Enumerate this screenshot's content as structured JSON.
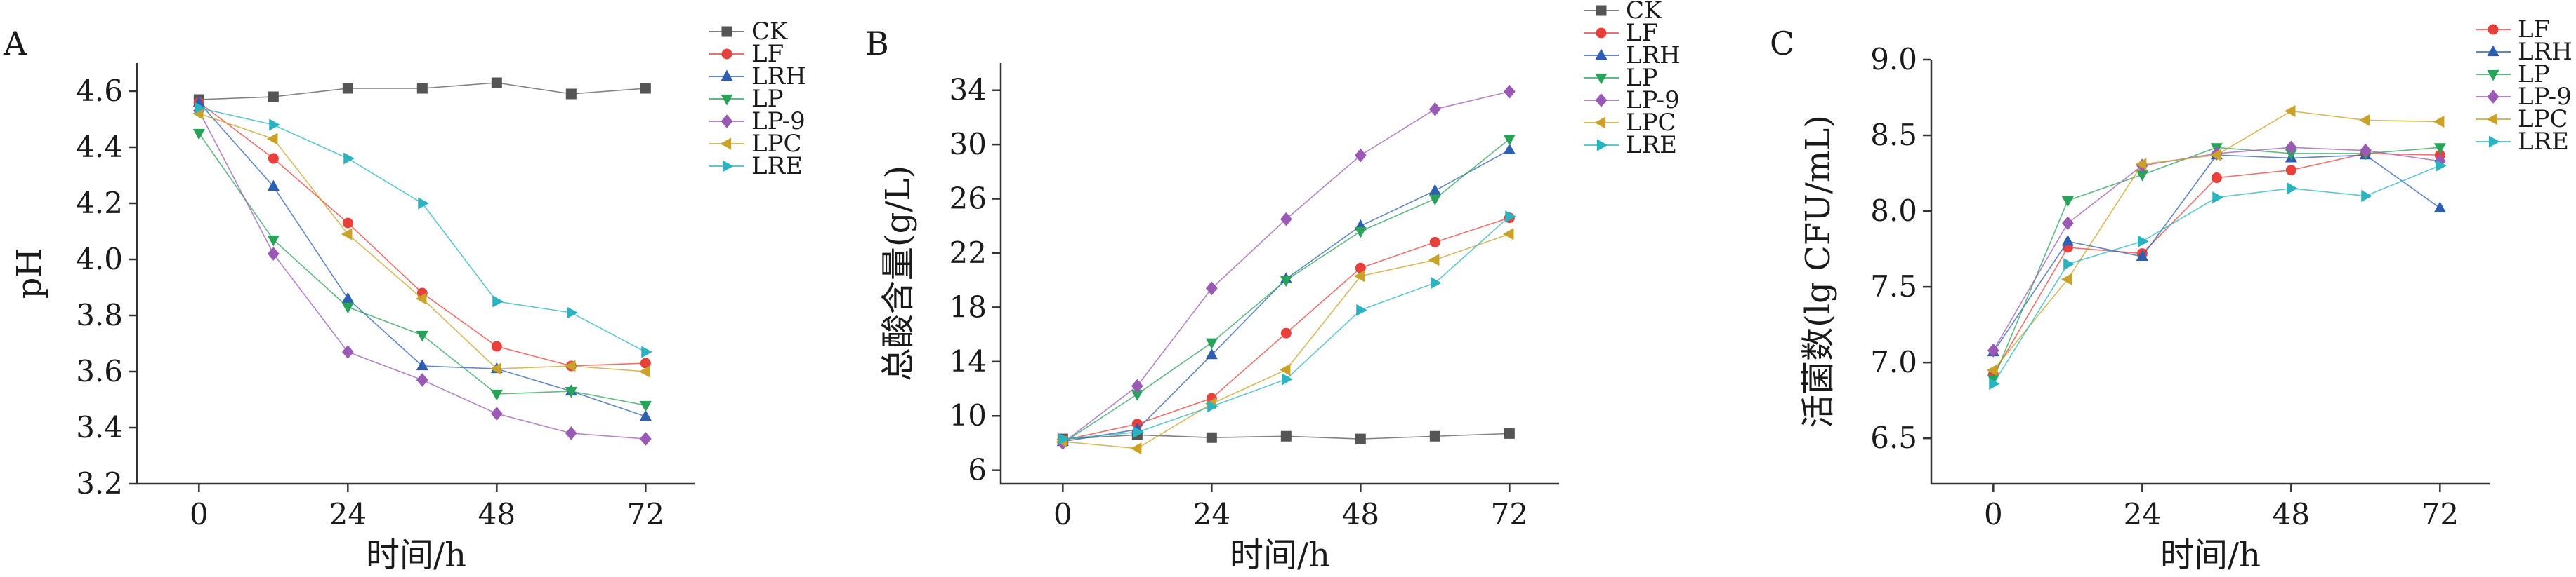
{
  "chart_data": [
    {
      "type": "line",
      "panel_label": "A",
      "ylabel": "pH",
      "xlabel": "时间/h",
      "x": [
        0,
        12,
        24,
        36,
        48,
        60,
        72
      ],
      "xticks": [
        "0",
        "24",
        "48",
        "72"
      ],
      "xlim": [
        -10,
        80
      ],
      "ylim": [
        3.2,
        4.7
      ],
      "yticks": [
        "3.2",
        "3.4",
        "3.6",
        "3.8",
        "4.0",
        "4.2",
        "4.4",
        "4.6"
      ],
      "legend_position": "top-right",
      "series": [
        {
          "name": "CK",
          "color": "#555555",
          "marker": "square",
          "values": [
            4.57,
            4.58,
            4.61,
            4.61,
            4.63,
            4.59,
            4.61
          ]
        },
        {
          "name": "LF",
          "color": "#e8413c",
          "marker": "circle",
          "values": [
            4.56,
            4.36,
            4.13,
            3.88,
            3.69,
            3.62,
            3.63
          ]
        },
        {
          "name": "LRH",
          "color": "#2c5fb0",
          "marker": "triangle-up",
          "values": [
            4.56,
            4.26,
            3.86,
            3.62,
            3.61,
            3.53,
            3.44
          ]
        },
        {
          "name": "LP",
          "color": "#2aa35a",
          "marker": "triangle-down",
          "values": [
            4.45,
            4.07,
            3.83,
            3.73,
            3.52,
            3.53,
            3.48
          ]
        },
        {
          "name": "LP-9",
          "color": "#9b59b6",
          "marker": "diamond",
          "values": [
            4.53,
            4.02,
            3.67,
            3.57,
            3.45,
            3.38,
            3.36
          ]
        },
        {
          "name": "LPC",
          "color": "#c9a227",
          "marker": "triangle-left",
          "values": [
            4.52,
            4.43,
            4.09,
            3.86,
            3.61,
            3.62,
            3.6
          ]
        },
        {
          "name": "LRE",
          "color": "#2bb3c0",
          "marker": "triangle-right",
          "values": [
            4.54,
            4.48,
            4.36,
            4.2,
            3.85,
            3.81,
            3.67
          ]
        }
      ]
    },
    {
      "type": "line",
      "panel_label": "B",
      "ylabel": "总酸含量(g/L)",
      "xlabel": "时间/h",
      "x": [
        0,
        12,
        24,
        36,
        48,
        60,
        72
      ],
      "xticks": [
        "0",
        "24",
        "48",
        "72"
      ],
      "xlim": [
        -10,
        80
      ],
      "ylim": [
        5,
        36
      ],
      "yticks": [
        "6",
        "10",
        "14",
        "18",
        "22",
        "26",
        "30",
        "34"
      ],
      "legend_position": "top-right",
      "series": [
        {
          "name": "CK",
          "color": "#555555",
          "marker": "square",
          "values": [
            8.3,
            8.6,
            8.4,
            8.5,
            8.3,
            8.5,
            8.7
          ]
        },
        {
          "name": "LF",
          "color": "#e8413c",
          "marker": "circle",
          "values": [
            8.2,
            9.4,
            11.3,
            16.1,
            20.9,
            22.8,
            24.6
          ]
        },
        {
          "name": "LRH",
          "color": "#2c5fb0",
          "marker": "triangle-up",
          "values": [
            8.1,
            9.0,
            14.5,
            20.1,
            24.0,
            26.6,
            29.6
          ]
        },
        {
          "name": "LP",
          "color": "#2aa35a",
          "marker": "triangle-down",
          "values": [
            8.0,
            11.6,
            15.4,
            20.0,
            23.6,
            26.0,
            30.4
          ]
        },
        {
          "name": "LP-9",
          "color": "#9b59b6",
          "marker": "diamond",
          "values": [
            8.0,
            12.2,
            19.4,
            24.5,
            29.2,
            32.6,
            33.9
          ]
        },
        {
          "name": "LPC",
          "color": "#c9a227",
          "marker": "triangle-left",
          "values": [
            8.1,
            7.6,
            10.9,
            13.4,
            20.3,
            21.5,
            23.4
          ]
        },
        {
          "name": "LRE",
          "color": "#2bb3c0",
          "marker": "triangle-right",
          "values": [
            8.3,
            8.8,
            10.7,
            12.7,
            17.8,
            19.8,
            24.7
          ]
        }
      ]
    },
    {
      "type": "line",
      "panel_label": "C",
      "ylabel": "活菌数(lg CFU/mL)",
      "xlabel": "时间/h",
      "x": [
        0,
        12,
        24,
        36,
        48,
        60,
        72
      ],
      "xticks": [
        "0",
        "24",
        "48",
        "72"
      ],
      "xlim": [
        -10,
        80
      ],
      "ylim": [
        6.2,
        9.0
      ],
      "yticks": [
        "6.5",
        "7.0",
        "7.5",
        "8.0",
        "8.5",
        "9.0"
      ],
      "legend_position": "top-right",
      "series": [
        {
          "name": "LF",
          "color": "#e8413c",
          "marker": "circle",
          "values": [
            6.92,
            7.76,
            7.72,
            8.22,
            8.27,
            8.38,
            8.37
          ]
        },
        {
          "name": "LRH",
          "color": "#2c5fb0",
          "marker": "triangle-up",
          "values": [
            7.07,
            7.8,
            7.7,
            8.37,
            8.35,
            8.37,
            8.02
          ]
        },
        {
          "name": "LP",
          "color": "#2aa35a",
          "marker": "triangle-down",
          "values": [
            6.89,
            8.07,
            8.24,
            8.42,
            8.38,
            8.38,
            8.42
          ]
        },
        {
          "name": "LP-9",
          "color": "#9b59b6",
          "marker": "diamond",
          "values": [
            7.08,
            7.92,
            8.3,
            8.38,
            8.42,
            8.4,
            8.33
          ]
        },
        {
          "name": "LPC",
          "color": "#c9a227",
          "marker": "triangle-left",
          "values": [
            6.95,
            7.55,
            8.31,
            8.37,
            8.66,
            8.6,
            8.59
          ]
        },
        {
          "name": "LRE",
          "color": "#2bb3c0",
          "marker": "triangle-right",
          "values": [
            6.86,
            7.65,
            7.8,
            8.09,
            8.15,
            8.1,
            8.3
          ]
        }
      ]
    }
  ]
}
